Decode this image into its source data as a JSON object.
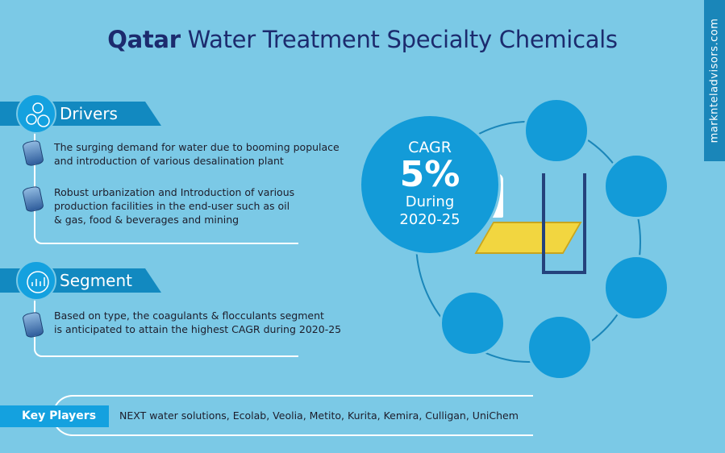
{
  "title": {
    "bold": "Qatar",
    "rest": " Water Treatment Specialty Chemicals"
  },
  "watermark": "marknteladvisors.com",
  "drivers": {
    "label": "Drivers",
    "icon": "gears-icon",
    "items": [
      [
        "The surging demand for water due to booming populace",
        "and introduction of various desalination plant"
      ],
      [
        "Robust urbanization and Introduction of various",
        "production facilities in the end-user such as oil",
        "& gas, food & beverages and mining"
      ]
    ]
  },
  "segment": {
    "label": "Segment",
    "icon": "chart-target-icon",
    "items": [
      [
        "Based on type, the coagulants & flocculants segment",
        "is anticipated to attain the highest CAGR during 2020-25"
      ]
    ]
  },
  "cagr": {
    "label": "CAGR",
    "value": "5%",
    "during": "During",
    "period": "2020-25"
  },
  "key_players": {
    "label": "Key Players",
    "text": "NEXT water solutions, Ecolab, Veolia, Metito, Kurita, Kemira, Culligan, UniChem"
  },
  "colors": {
    "background": "#7bc9e6",
    "title": "#1c2b6e",
    "accent": "#139bd8",
    "banner": "#1289c0"
  }
}
